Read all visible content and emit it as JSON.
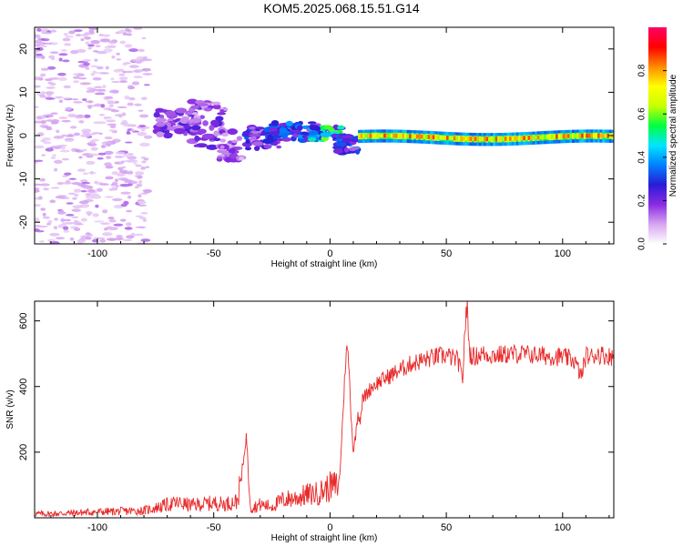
{
  "title": "KOM5.2025.068.15.51.G14",
  "colors": {
    "line": "#e82a2a",
    "axis": "#000000",
    "background": "#ffffff"
  },
  "chart_data": [
    {
      "type": "heatmap",
      "xlabel": "Height of straight line (km)",
      "ylabel": "Frequency (Hz)",
      "xlim": [
        -127,
        122
      ],
      "ylim": [
        -25,
        25
      ],
      "xticks": [
        -100,
        -50,
        0,
        50,
        100
      ],
      "yticks": [
        -20,
        -10,
        0,
        10,
        20
      ],
      "tick_labels_x": [
        "-100",
        "-50",
        "0",
        "50",
        "100"
      ],
      "tick_labels_y": [
        "-20",
        "-10",
        "0",
        "10",
        "20"
      ],
      "grid": false,
      "colorbar": {
        "label": "Normalized spectral amplitude",
        "range": [
          0,
          1
        ],
        "ticks": [
          0.0,
          0.2,
          0.4,
          0.6,
          0.8
        ],
        "tick_labels": [
          "0.0",
          "0.2",
          "0.4",
          "0.6",
          "0.8"
        ],
        "colormap": [
          "#ffffff",
          "#d7a6f0",
          "#8a2be2",
          "#2a1bd6",
          "#0080ff",
          "#00e5ff",
          "#00ff40",
          "#c8ff00",
          "#ffff00",
          "#ff8a00",
          "#ff0000",
          "#ff0066"
        ]
      },
      "features": [
        {
          "region": "noise",
          "x": [
            -127,
            -78
          ],
          "freq": [
            -25,
            25
          ],
          "amplitude": 0.05
        },
        {
          "region": "blob",
          "x": [
            -75,
            -57
          ],
          "freq": [
            0,
            6
          ],
          "amplitude": 0.2
        },
        {
          "region": "blob",
          "x": [
            -60,
            -45
          ],
          "freq": [
            -3,
            8
          ],
          "amplitude": 0.18
        },
        {
          "region": "blob",
          "x": [
            -48,
            -38
          ],
          "freq": [
            -6,
            1
          ],
          "amplitude": 0.15
        },
        {
          "region": "blob",
          "x": [
            -36,
            -22
          ],
          "freq": [
            -3,
            2
          ],
          "amplitude": 0.25
        },
        {
          "region": "blob",
          "x": [
            -25,
            -5
          ],
          "freq": [
            -1,
            3
          ],
          "amplitude": 0.3
        },
        {
          "region": "blob",
          "x": [
            -8,
            5
          ],
          "freq": [
            -1,
            2
          ],
          "amplitude": 0.45
        },
        {
          "region": "blob",
          "x": [
            2,
            12
          ],
          "freq": [
            -4,
            0
          ],
          "amplitude": 0.3
        },
        {
          "region": "band",
          "x": [
            12,
            122
          ],
          "freq": [
            -2,
            1
          ],
          "amplitude": 0.8
        }
      ]
    },
    {
      "type": "line",
      "xlabel": "Height of straight line (km)",
      "ylabel": "SNR (v/v)",
      "xlim": [
        -127,
        122
      ],
      "ylim": [
        0,
        660
      ],
      "xticks": [
        -100,
        -50,
        0,
        50,
        100
      ],
      "yticks": [
        200,
        400,
        600
      ],
      "tick_labels_x": [
        "-100",
        "-50",
        "0",
        "50",
        "100"
      ],
      "tick_labels_y": [
        "200",
        "400",
        "600"
      ],
      "grid": false,
      "series": [
        {
          "x": [
            -127,
            -120,
            -110,
            -100,
            -90,
            -80,
            -75,
            -70,
            -65,
            -60,
            -55,
            -50,
            -45,
            -40,
            -38,
            -36,
            -34,
            -30,
            -25,
            -20,
            -15,
            -10,
            -5,
            0,
            4,
            6,
            7,
            8,
            9,
            10,
            11,
            12,
            13,
            14,
            16,
            18,
            20,
            25,
            30,
            35,
            40,
            45,
            50,
            55,
            57,
            58,
            59,
            60,
            62,
            65,
            70,
            80,
            90,
            100,
            105,
            108,
            110,
            112,
            115,
            118,
            122
          ],
          "values": [
            12,
            12,
            15,
            18,
            20,
            22,
            30,
            40,
            45,
            38,
            42,
            45,
            42,
            50,
            120,
            250,
            30,
            40,
            35,
            55,
            60,
            70,
            75,
            95,
            100,
            380,
            520,
            480,
            320,
            200,
            250,
            320,
            300,
            360,
            380,
            400,
            410,
            430,
            450,
            470,
            480,
            490,
            495,
            480,
            420,
            580,
            640,
            500,
            490,
            500,
            495,
            500,
            495,
            490,
            480,
            430,
            495,
            490,
            500,
            495,
            490
          ]
        }
      ]
    }
  ]
}
